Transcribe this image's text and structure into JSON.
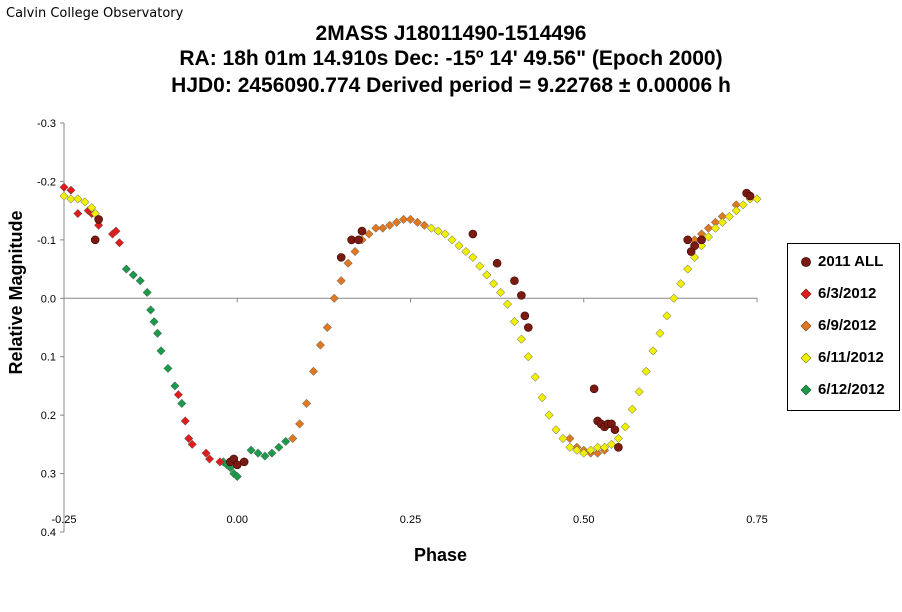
{
  "corner_label": "Calvin College Observatory",
  "title_lines": [
    "2MASS J18011490-1514496",
    "RA: 18h 01m 14.910s   Dec: -15º 14' 49.56\"  (Epoch 2000)",
    "HJD0: 2456090.774     Derived period =  9.22768 ± 0.00006 h"
  ],
  "chart_data": {
    "type": "scatter",
    "xlabel": "Phase",
    "ylabel": "Relative Magnitude",
    "xlim": [
      -0.25,
      0.75
    ],
    "ylim": [
      -0.3,
      0.4
    ],
    "y_inverted": true,
    "grid": false,
    "legend_position": "right",
    "xticks": [
      "-0.25",
      "0.00",
      "0.25",
      "0.50",
      "0.75"
    ],
    "xtick_values": [
      -0.25,
      0.0,
      0.25,
      0.5,
      0.75
    ],
    "yticks": [
      "-0.3",
      "-0.2",
      "-0.1",
      "0.0",
      "0.1",
      "0.2",
      "0.3",
      "0.4"
    ],
    "ytick_values": [
      -0.3,
      -0.2,
      -0.1,
      0.0,
      0.1,
      0.2,
      0.3,
      0.4
    ],
    "series": [
      {
        "name": "2011 ALL",
        "color": "#7b1a10",
        "marker": "circle",
        "points": [
          [
            -0.205,
            -0.1
          ],
          [
            -0.2,
            -0.135
          ],
          [
            -0.01,
            0.28
          ],
          [
            -0.005,
            0.275
          ],
          [
            0.0,
            0.285
          ],
          [
            0.01,
            0.28
          ],
          [
            0.15,
            -0.07
          ],
          [
            0.165,
            -0.1
          ],
          [
            0.175,
            -0.1
          ],
          [
            0.18,
            -0.115
          ],
          [
            0.34,
            -0.11
          ],
          [
            0.375,
            -0.06
          ],
          [
            0.4,
            -0.03
          ],
          [
            0.41,
            -0.005
          ],
          [
            0.415,
            0.03
          ],
          [
            0.42,
            0.05
          ],
          [
            0.52,
            0.21
          ],
          [
            0.525,
            0.215
          ],
          [
            0.53,
            0.22
          ],
          [
            0.535,
            0.215
          ],
          [
            0.54,
            0.215
          ],
          [
            0.545,
            0.225
          ],
          [
            0.515,
            0.155
          ],
          [
            0.55,
            0.255
          ],
          [
            0.65,
            -0.1
          ],
          [
            0.655,
            -0.08
          ],
          [
            0.66,
            -0.09
          ],
          [
            0.67,
            -0.1
          ],
          [
            0.735,
            -0.18
          ],
          [
            0.74,
            -0.175
          ]
        ]
      },
      {
        "name": "6/3/2012",
        "color": "#e01d1d",
        "marker": "diamond",
        "points": [
          [
            -0.25,
            -0.19
          ],
          [
            -0.24,
            -0.185
          ],
          [
            -0.23,
            -0.145
          ],
          [
            -0.215,
            -0.15
          ],
          [
            -0.21,
            -0.145
          ],
          [
            -0.2,
            -0.125
          ],
          [
            -0.18,
            -0.11
          ],
          [
            -0.175,
            -0.115
          ],
          [
            -0.17,
            -0.095
          ],
          [
            -0.085,
            0.165
          ],
          [
            -0.075,
            0.21
          ],
          [
            -0.07,
            0.24
          ],
          [
            -0.065,
            0.25
          ],
          [
            -0.045,
            0.265
          ],
          [
            -0.04,
            0.275
          ],
          [
            -0.025,
            0.28
          ]
        ]
      },
      {
        "name": "6/9/2012",
        "color": "#e07820",
        "marker": "diamond",
        "points": [
          [
            0.08,
            0.24
          ],
          [
            0.09,
            0.215
          ],
          [
            0.1,
            0.18
          ],
          [
            0.11,
            0.125
          ],
          [
            0.12,
            0.08
          ],
          [
            0.13,
            0.05
          ],
          [
            0.14,
            0.0
          ],
          [
            0.15,
            -0.03
          ],
          [
            0.16,
            -0.06
          ],
          [
            0.17,
            -0.08
          ],
          [
            0.18,
            -0.1
          ],
          [
            0.19,
            -0.11
          ],
          [
            0.2,
            -0.12
          ],
          [
            0.21,
            -0.12
          ],
          [
            0.22,
            -0.125
          ],
          [
            0.23,
            -0.13
          ],
          [
            0.24,
            -0.135
          ],
          [
            0.25,
            -0.135
          ],
          [
            0.26,
            -0.13
          ],
          [
            0.27,
            -0.125
          ],
          [
            0.48,
            0.24
          ],
          [
            0.49,
            0.255
          ],
          [
            0.5,
            0.26
          ],
          [
            0.51,
            0.265
          ],
          [
            0.52,
            0.265
          ],
          [
            0.53,
            0.26
          ],
          [
            0.66,
            -0.1
          ],
          [
            0.67,
            -0.11
          ],
          [
            0.68,
            -0.12
          ],
          [
            0.69,
            -0.13
          ],
          [
            0.7,
            -0.14
          ],
          [
            0.72,
            -0.16
          ]
        ]
      },
      {
        "name": "6/11/2012",
        "color": "#f0f000",
        "marker": "diamond",
        "points": [
          [
            -0.25,
            -0.175
          ],
          [
            -0.24,
            -0.17
          ],
          [
            -0.23,
            -0.17
          ],
          [
            -0.22,
            -0.165
          ],
          [
            -0.21,
            -0.155
          ],
          [
            -0.205,
            -0.145
          ],
          [
            0.28,
            -0.12
          ],
          [
            0.29,
            -0.115
          ],
          [
            0.3,
            -0.11
          ],
          [
            0.31,
            -0.1
          ],
          [
            0.32,
            -0.09
          ],
          [
            0.33,
            -0.08
          ],
          [
            0.34,
            -0.07
          ],
          [
            0.35,
            -0.055
          ],
          [
            0.36,
            -0.04
          ],
          [
            0.37,
            -0.025
          ],
          [
            0.38,
            -0.01
          ],
          [
            0.39,
            0.01
          ],
          [
            0.4,
            0.04
          ],
          [
            0.41,
            0.07
          ],
          [
            0.42,
            0.1
          ],
          [
            0.43,
            0.135
          ],
          [
            0.44,
            0.17
          ],
          [
            0.45,
            0.2
          ],
          [
            0.46,
            0.225
          ],
          [
            0.47,
            0.24
          ],
          [
            0.48,
            0.255
          ],
          [
            0.49,
            0.26
          ],
          [
            0.5,
            0.265
          ],
          [
            0.51,
            0.26
          ],
          [
            0.52,
            0.255
          ],
          [
            0.53,
            0.255
          ],
          [
            0.54,
            0.25
          ],
          [
            0.55,
            0.24
          ],
          [
            0.56,
            0.22
          ],
          [
            0.57,
            0.19
          ],
          [
            0.58,
            0.16
          ],
          [
            0.59,
            0.125
          ],
          [
            0.6,
            0.09
          ],
          [
            0.61,
            0.06
          ],
          [
            0.62,
            0.03
          ],
          [
            0.63,
            0.0
          ],
          [
            0.64,
            -0.025
          ],
          [
            0.65,
            -0.05
          ],
          [
            0.66,
            -0.07
          ],
          [
            0.67,
            -0.09
          ],
          [
            0.68,
            -0.105
          ],
          [
            0.69,
            -0.12
          ],
          [
            0.7,
            -0.13
          ],
          [
            0.71,
            -0.14
          ],
          [
            0.72,
            -0.15
          ],
          [
            0.73,
            -0.16
          ],
          [
            0.74,
            -0.17
          ],
          [
            0.75,
            -0.17
          ]
        ]
      },
      {
        "name": "6/12/2012",
        "color": "#1a9a4a",
        "marker": "diamond",
        "points": [
          [
            -0.16,
            -0.05
          ],
          [
            -0.15,
            -0.04
          ],
          [
            -0.14,
            -0.03
          ],
          [
            -0.13,
            -0.01
          ],
          [
            -0.125,
            0.02
          ],
          [
            -0.12,
            0.04
          ],
          [
            -0.115,
            0.06
          ],
          [
            -0.11,
            0.09
          ],
          [
            -0.1,
            0.12
          ],
          [
            -0.09,
            0.15
          ],
          [
            -0.08,
            0.18
          ],
          [
            -0.02,
            0.28
          ],
          [
            -0.015,
            0.285
          ],
          [
            -0.01,
            0.29
          ],
          [
            -0.005,
            0.3
          ],
          [
            0.0,
            0.305
          ],
          [
            0.01,
            0.28
          ],
          [
            0.02,
            0.26
          ],
          [
            0.03,
            0.265
          ],
          [
            0.04,
            0.27
          ],
          [
            0.05,
            0.265
          ],
          [
            0.06,
            0.255
          ],
          [
            0.07,
            0.245
          ]
        ]
      }
    ]
  }
}
